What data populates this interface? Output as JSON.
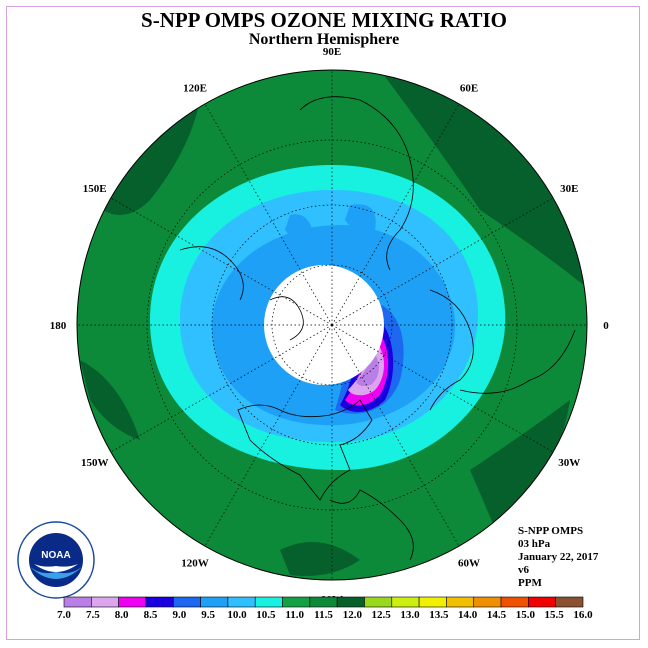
{
  "title": "S-NPP OMPS OZONE MIXING RATIO",
  "subtitle": "Northern Hemisphere",
  "longitude_labels": [
    {
      "text": "90E",
      "angle": 90
    },
    {
      "text": "60E",
      "angle": 60
    },
    {
      "text": "30E",
      "angle": 30
    },
    {
      "text": "0",
      "angle": 0
    },
    {
      "text": "30W",
      "angle": -30
    },
    {
      "text": "60W",
      "angle": -60
    },
    {
      "text": "90W",
      "angle": -90
    },
    {
      "text": "120W",
      "angle": -120
    },
    {
      "text": "150W",
      "angle": -150
    },
    {
      "text": "180",
      "angle": 180
    },
    {
      "text": "150E",
      "angle": 150
    },
    {
      "text": "120E",
      "angle": 120
    }
  ],
  "info": {
    "instrument": "S-NPP OMPS",
    "level": "03 hPa",
    "date": "January 22, 2017",
    "version": "v6",
    "units": "PPM"
  },
  "logo_text": "NOAA",
  "colorbar": {
    "labels": [
      "7.0",
      "7.5",
      "8.0",
      "8.5",
      "9.0",
      "9.5",
      "10.0",
      "10.5",
      "11.0",
      "11.5",
      "12.0",
      "12.5",
      "13.0",
      "13.5",
      "14.0",
      "14.5",
      "15.0",
      "15.5",
      "16.0"
    ],
    "colors": [
      "#b97fe6",
      "#dca6ef",
      "#f000f0",
      "#1a00e0",
      "#1c68f0",
      "#1da0f5",
      "#30c0ff",
      "#18f0e0",
      "#16a046",
      "#0c8a3a",
      "#06602c",
      "#9ad81e",
      "#ccee10",
      "#f0f000",
      "#f0c000",
      "#f09000",
      "#f05000",
      "#f00000",
      "#8a5030"
    ]
  }
}
